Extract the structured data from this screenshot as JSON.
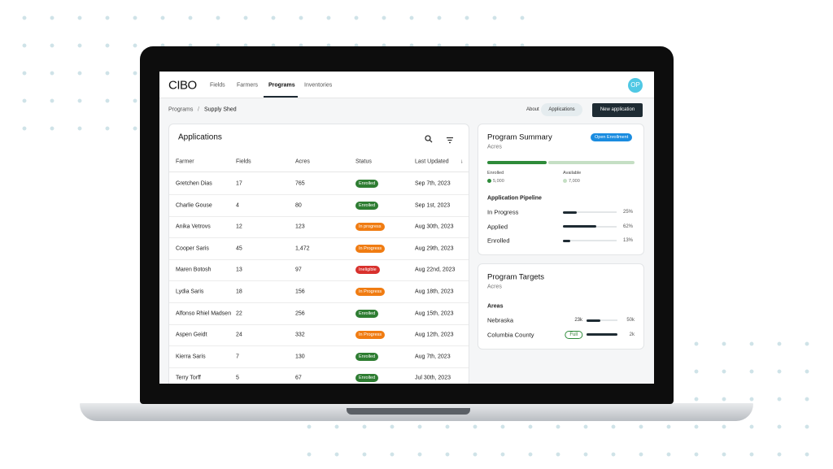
{
  "nav": {
    "logo": "CIBO",
    "links": [
      "Fields",
      "Farmers",
      "Programs",
      "Inventories"
    ],
    "avatar": "OP"
  },
  "breadcrumb": [
    "Programs",
    "Supply Shed"
  ],
  "actions": [
    "About",
    "Applications",
    "New application"
  ],
  "applications": {
    "title": "Applications",
    "columns": [
      "Farmer",
      "Fields",
      "Acres",
      "Status",
      "Last Updated"
    ],
    "rows": [
      {
        "farmer": "Gretchen Dias",
        "fields": 17,
        "acres": 765,
        "status": "Enrolled",
        "status_color": "#2e7d32",
        "updated": "Sep 7th, 2023"
      },
      {
        "farmer": "Charlie Gouse",
        "fields": 4,
        "acres": 80,
        "status": "Enrolled",
        "status_color": "#2e7d32",
        "updated": "Sep 1st, 2023"
      },
      {
        "farmer": "Anika Vetrovs",
        "fields": 12,
        "acres": 123,
        "status": "In progress",
        "status_color": "#f07c12",
        "updated": "Aug 30th, 2023"
      },
      {
        "farmer": "Cooper Saris",
        "fields": 45,
        "acres": "1,472",
        "status": "In Progress",
        "status_color": "#f07c12",
        "updated": "Aug 29th, 2023"
      },
      {
        "farmer": "Maren Botosh",
        "fields": 13,
        "acres": 97,
        "status": "Ineligible",
        "status_color": "#d8312d",
        "updated": "Aug 22nd, 2023"
      },
      {
        "farmer": "Lydia Saris",
        "fields": 18,
        "acres": 156,
        "status": "In Progress",
        "status_color": "#f07c12",
        "updated": "Aug 18th, 2023"
      },
      {
        "farmer": "Alfonso Rhiel Madsen",
        "fields": 22,
        "acres": 256,
        "status": "Enrolled",
        "status_color": "#2e7d32",
        "updated": "Aug 15th, 2023"
      },
      {
        "farmer": "Aspen Geidt",
        "fields": 24,
        "acres": 332,
        "status": "In Progress",
        "status_color": "#f07c12",
        "updated": "Aug 12th, 2023"
      },
      {
        "farmer": "Kierra Saris",
        "fields": 7,
        "acres": 130,
        "status": "Enrolled",
        "status_color": "#2e7d32",
        "updated": "Aug 7th, 2023"
      },
      {
        "farmer": "Terry Torff",
        "fields": 5,
        "acres": 67,
        "status": "Enrolled",
        "status_color": "#2e7d32",
        "updated": "Jul 30th, 2023"
      }
    ]
  },
  "summary": {
    "title": "Program Summary",
    "subtitle": "Acres",
    "badge": "Open Enrollment",
    "enrolled": {
      "label": "Enrolled",
      "value": 5000,
      "value_label": "5,000",
      "color": "#2e8b3a"
    },
    "available": {
      "label": "Available",
      "value": 7000,
      "value_label": "7,000",
      "color": "#c5dfc4"
    },
    "pipeline_title": "Application Pipeline",
    "pipeline": [
      {
        "label": "In Progress",
        "value": 25,
        "value_label": "25%"
      },
      {
        "label": "Applied",
        "value": 62,
        "value_label": "62%"
      },
      {
        "label": "Enrolled",
        "value": 13,
        "value_label": "13%"
      }
    ]
  },
  "targets": {
    "title": "Program Targets",
    "subtitle": "Acres",
    "areas_title": "Areas",
    "areas": [
      {
        "name": "Nebraska",
        "current_label": "23k",
        "value": 23000,
        "target": 50000,
        "target_label": "50k"
      },
      {
        "name": "Columbia County",
        "current_label": "Full",
        "value": 2000,
        "target": 2000,
        "target_label": "2k"
      }
    ]
  }
}
